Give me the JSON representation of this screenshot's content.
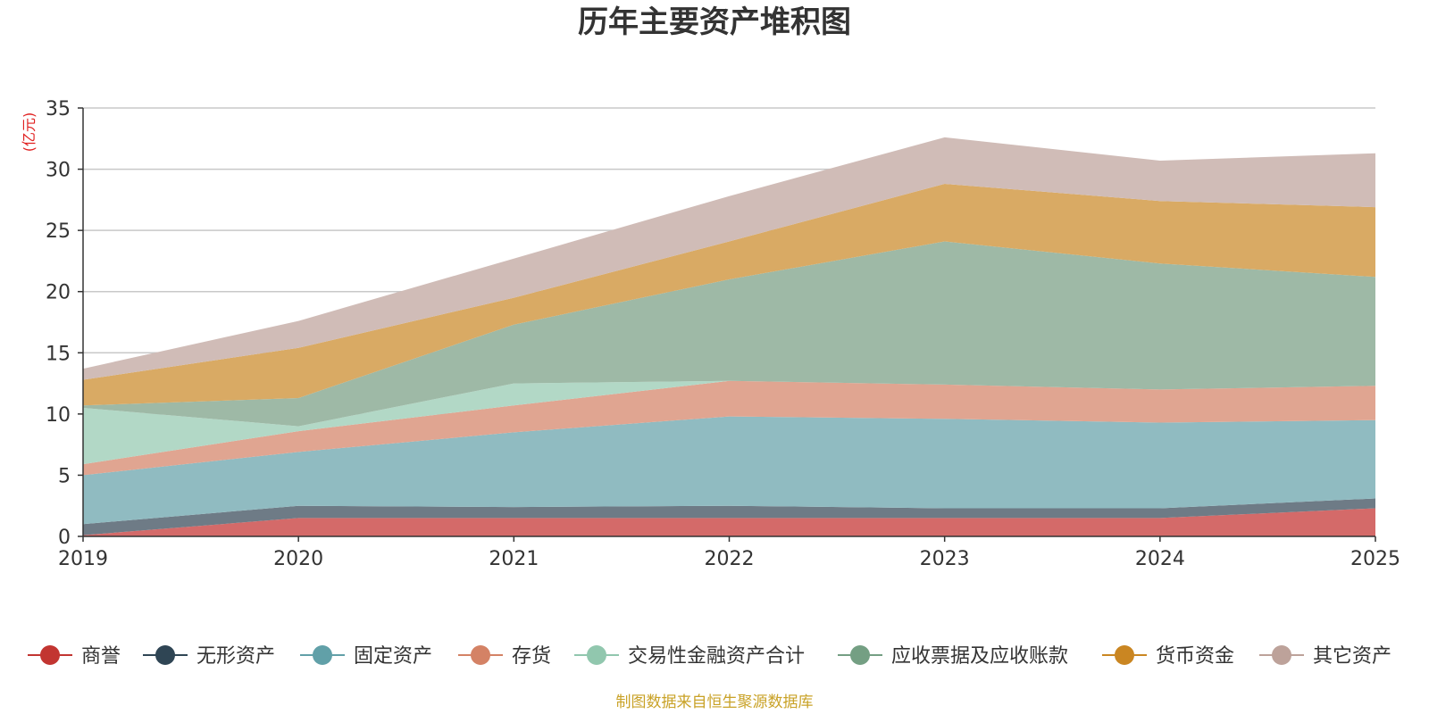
{
  "chart_data": {
    "type": "area",
    "stacked": true,
    "title": "历年主要资产堆积图",
    "unit_label": "(亿元)",
    "source_note": "制图数据来自恒生聚源数据库",
    "x": [
      "2019",
      "2020",
      "2021",
      "2022",
      "2023",
      "2024",
      "2025"
    ],
    "ylim": [
      0,
      35
    ],
    "yticks": [
      0,
      5,
      10,
      15,
      20,
      25,
      30,
      35
    ],
    "grid": true,
    "legend_position": "bottom",
    "series": [
      {
        "name": "商誉",
        "color": "#c23531",
        "fill": "#d46a69",
        "values": [
          0.1,
          1.5,
          1.5,
          1.5,
          1.5,
          1.5,
          2.3
        ]
      },
      {
        "name": "无形资产",
        "color": "#2f4554",
        "fill": "#6e7b86",
        "values": [
          0.9,
          1.0,
          0.9,
          1.0,
          0.8,
          0.8,
          0.8
        ]
      },
      {
        "name": "固定资产",
        "color": "#61a0a8",
        "fill": "#90bbc1",
        "values": [
          4.0,
          4.4,
          6.1,
          7.3,
          7.3,
          7.0,
          6.4
        ]
      },
      {
        "name": "存货",
        "color": "#d48265",
        "fill": "#e0a591",
        "values": [
          0.9,
          1.7,
          2.2,
          2.9,
          2.8,
          2.7,
          2.8
        ]
      },
      {
        "name": "交易性金融资产合计",
        "color": "#91c7ae",
        "fill": "#b2d8c6",
        "values": [
          4.6,
          0.4,
          1.8,
          0.0,
          0.0,
          0.0,
          0.0
        ]
      },
      {
        "name": "应收票据及应收账款",
        "color": "#749f83",
        "fill": "#9eb9a6",
        "values": [
          0.2,
          2.3,
          4.8,
          8.3,
          11.7,
          10.3,
          8.9
        ]
      },
      {
        "name": "货币资金",
        "color": "#ca8622",
        "fill": "#d9aa64",
        "values": [
          2.1,
          4.1,
          2.2,
          3.1,
          4.7,
          5.1,
          5.7
        ]
      },
      {
        "name": "其它资产",
        "color": "#bda29a",
        "fill": "#d0bcb7",
        "values": [
          0.9,
          2.2,
          3.2,
          3.7,
          3.8,
          3.3,
          4.4
        ]
      }
    ]
  }
}
